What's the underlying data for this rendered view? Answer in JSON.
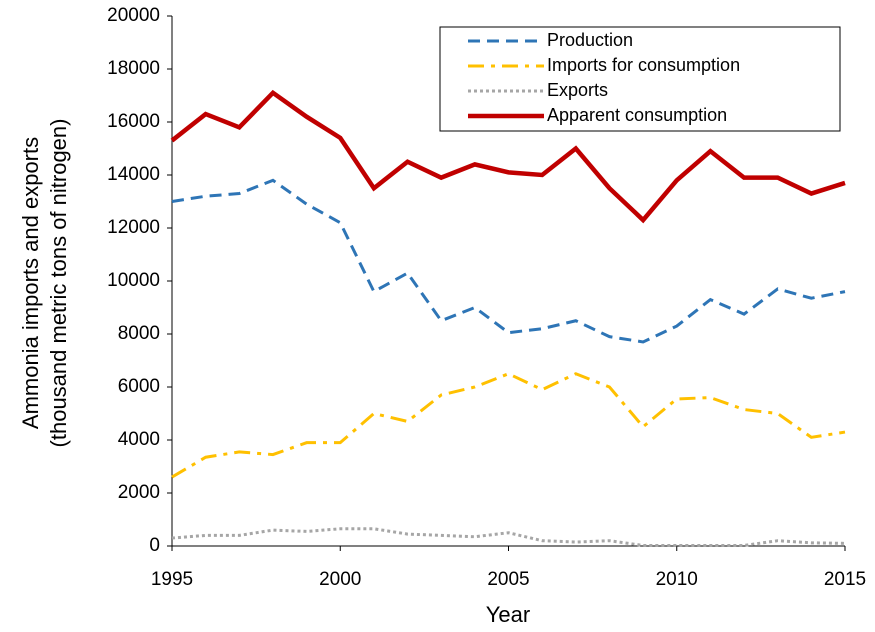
{
  "chart_data": {
    "type": "line",
    "xlabel": "Year",
    "ylabel": [
      "Ammonia imports and exports",
      "(thousand metric tons of nitrogen)"
    ],
    "x": [
      1995,
      1996,
      1997,
      1998,
      1999,
      2000,
      2001,
      2002,
      2003,
      2004,
      2005,
      2006,
      2007,
      2008,
      2009,
      2010,
      2011,
      2012,
      2013,
      2014,
      2015
    ],
    "series": [
      {
        "name": "Production",
        "color": "#2e75b6",
        "dash": "dashed",
        "values": [
          13000,
          13200,
          13300,
          13800,
          12900,
          12200,
          9600,
          10300,
          8500,
          9000,
          8050,
          8200,
          8500,
          7900,
          7700,
          8300,
          9300,
          8750,
          9700,
          9350,
          9600
        ]
      },
      {
        "name": "Imports for consumption",
        "color": "#ffc000",
        "dash": "dashdot",
        "values": [
          2600,
          3350,
          3550,
          3450,
          3900,
          3900,
          5000,
          4700,
          5700,
          6000,
          6500,
          5900,
          6500,
          6000,
          4500,
          5550,
          5600,
          5150,
          5000,
          4100,
          4300
        ]
      },
      {
        "name": "Exports",
        "color": "#a6a6a6",
        "dash": "dotted",
        "values": [
          300,
          400,
          400,
          600,
          550,
          650,
          650,
          450,
          400,
          350,
          500,
          200,
          150,
          200,
          20,
          20,
          20,
          20,
          200,
          120,
          100
        ]
      },
      {
        "name": "Apparent consumption",
        "color": "#c00000",
        "dash": "solid",
        "values": [
          15300,
          16300,
          15800,
          17100,
          16200,
          15400,
          13500,
          14500,
          13900,
          14400,
          14100,
          14000,
          15000,
          13500,
          12300,
          13800,
          14900,
          13900,
          13900,
          13300,
          13700
        ]
      }
    ],
    "xlim": [
      1995,
      2015
    ],
    "xticks": [
      1995,
      2000,
      2005,
      2010,
      2015
    ],
    "ylim": [
      0,
      20000
    ],
    "yticks": [
      0,
      2000,
      4000,
      6000,
      8000,
      10000,
      12000,
      14000,
      16000,
      18000,
      20000
    ],
    "legend": "upper right"
  }
}
